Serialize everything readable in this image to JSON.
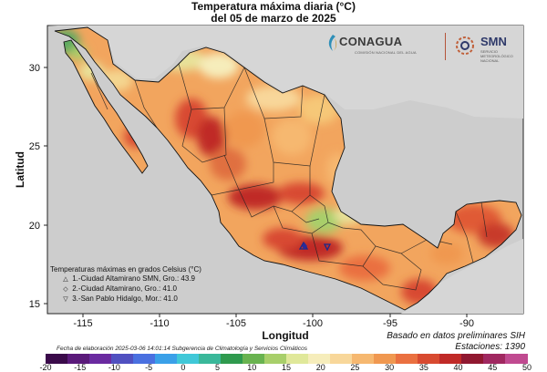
{
  "title": "Temperatura máxima diaria (°C)",
  "subtitle": "del 05 de marzo de 2025",
  "xlabel": "Longitud",
  "ylabel": "Latitud",
  "x_ticks": [
    "-115",
    "-110",
    "-105",
    "-100",
    "-95",
    "-90"
  ],
  "y_ticks": [
    "30",
    "25",
    "20",
    "15"
  ],
  "logos": {
    "conagua": "CONAGUA",
    "conagua_sub": "COMISIÓN NACIONAL DEL AGUA",
    "smn": "SMN",
    "smn_sub": "SERVICIO METEOROLÓGICO NACIONAL"
  },
  "legend": {
    "title": "Temperaturas máximas en grados Celsius (°C)",
    "items": [
      {
        "symbol": "△",
        "text": "1.-Ciudad Altamirano SMN, Gro.: 43.9"
      },
      {
        "symbol": "◇",
        "text": "2.-Ciudad Altamirano, Gro.: 41.0"
      },
      {
        "symbol": "▽",
        "text": "3.-San Pablo Hidalgo, Mor.: 41.0"
      }
    ]
  },
  "footer": "Fecha de elaboración 2025-03-06 14:01:14 Subgerencia de Climatología y Servicios Climáticos",
  "basado": "Basado en datos preliminares SIH",
  "estaciones": "Estaciones:  1390",
  "colorbar": {
    "labels": [
      "-20",
      "-15",
      "-10",
      "-5",
      "0",
      "5",
      "10",
      "15",
      "20",
      "25",
      "30",
      "35",
      "40",
      "45",
      "50"
    ],
    "colors": [
      "#3a0a4a",
      "#5a1a7a",
      "#6a2aa0",
      "#5050c0",
      "#4a70e0",
      "#3aa0e8",
      "#40c8d8",
      "#3ab89a",
      "#2f9a4e",
      "#69b350",
      "#a8cf6a",
      "#e0e89a",
      "#f6edbb",
      "#f8d79a",
      "#f6b870",
      "#f09850",
      "#ea7040",
      "#d84a30",
      "#c02a28",
      "#901830",
      "#a02860",
      "#c04a90"
    ]
  }
}
